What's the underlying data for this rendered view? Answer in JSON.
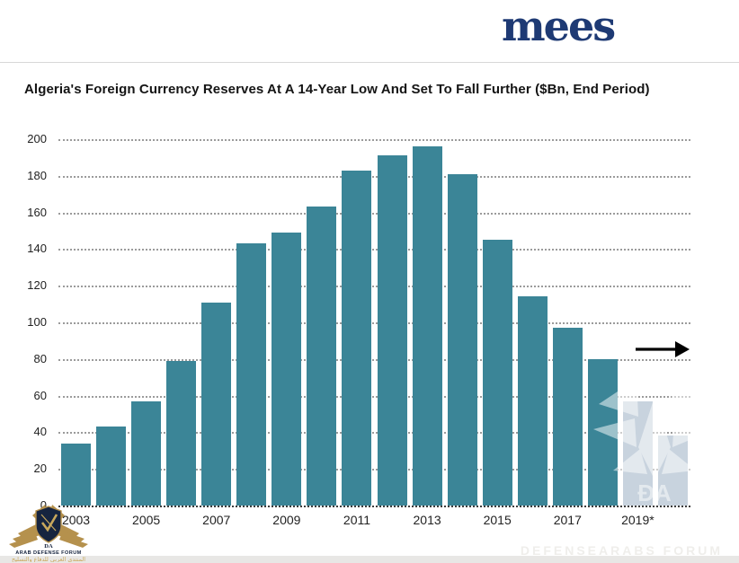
{
  "header": {
    "logo_text": "mees"
  },
  "title": "Algeria's Foreign Currency Reserves At A 14-Year Low And Set To Fall Further ($Bn, End Period)",
  "chart_data": {
    "type": "bar",
    "title": "Algeria's Foreign Currency Reserves At A 14-Year Low And Set To Fall Further ($Bn, End Period)",
    "categories": [
      "2003",
      "2004",
      "2005",
      "2006",
      "2007",
      "2008",
      "2009",
      "2010",
      "2011",
      "2012",
      "2013",
      "2014",
      "2015",
      "2016",
      "2017",
      "2018",
      "2019",
      "2020"
    ],
    "values": [
      34,
      43,
      57,
      79,
      111,
      143,
      149,
      163,
      183,
      191,
      196,
      181,
      145,
      114,
      97,
      80,
      57,
      38
    ],
    "x_tick_labels": [
      "2003",
      "2005",
      "2007",
      "2009",
      "2011",
      "2013",
      "2015",
      "2017",
      "2019*"
    ],
    "y_ticks": [
      0,
      20,
      40,
      60,
      80,
      100,
      120,
      140,
      160,
      180,
      200
    ],
    "ylim": [
      0,
      200
    ],
    "xlabel": "",
    "ylabel": "",
    "grid": "horizontal dotted",
    "legend": "none",
    "bar_color": "#3b8597",
    "forecast_bar_color": "#c8d3de",
    "forecast_from_index": 16,
    "annotation": "right-pointing arrow after last bar indicating continued decline"
  },
  "watermarks": {
    "forum_monogram": "DA",
    "forum_name": "ARAB DEFENSE FORUM",
    "forum_arabic": "المنتدى العربي للدفاع والتسليح",
    "ghost_monogram": "ĐA",
    "faint_text": "DEFENSEARABS FORUM"
  }
}
